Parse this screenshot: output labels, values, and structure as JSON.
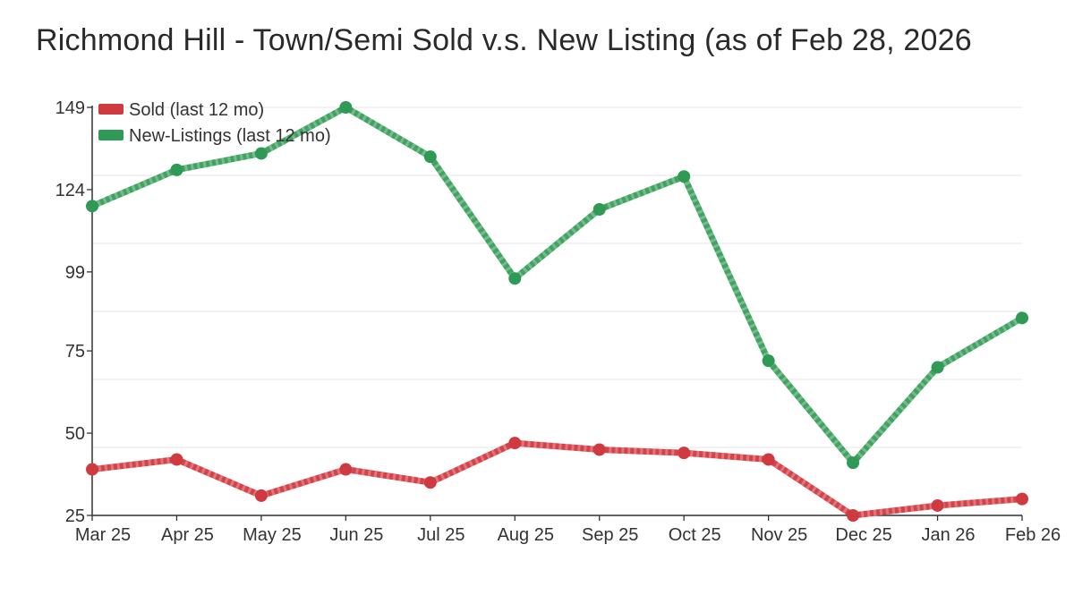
{
  "title": "Richmond Hill - Town/Semi Sold v.s. New Listing (as of Feb 28, 2026",
  "chart_data": {
    "type": "line",
    "categories": [
      "Mar 25",
      "Apr 25",
      "May 25",
      "Jun 25",
      "Jul 25",
      "Aug 25",
      "Sep 25",
      "Oct 25",
      "Nov 25",
      "Dec 25",
      "Jan 26",
      "Feb 26"
    ],
    "series": [
      {
        "name": "Sold (last 12 mo)",
        "values": [
          39,
          42,
          31,
          39,
          35,
          47,
          45,
          44,
          42,
          25,
          28,
          30
        ],
        "color": "#ce3a40",
        "line_color": "#d5434a"
      },
      {
        "name": "New-Listings (last 12 mo)",
        "values": [
          119,
          130,
          135,
          149,
          134,
          97,
          118,
          128,
          72,
          41,
          70,
          85
        ],
        "color": "#2f9956",
        "line_color": "#41a362"
      }
    ],
    "yticks": [
      149,
      124,
      99,
      75,
      50,
      25
    ],
    "ylim": [
      25,
      149
    ],
    "xlabel": "",
    "ylabel": "",
    "grid": true,
    "grid_divisions": 6,
    "legend_position": "top-left"
  },
  "colors": {
    "background": "#ffffff",
    "grid": "#e9e9e9",
    "axis": "#333333",
    "tick_text": "#333333",
    "legend_text": "#333333",
    "title_text": "#2a2a2a"
  }
}
